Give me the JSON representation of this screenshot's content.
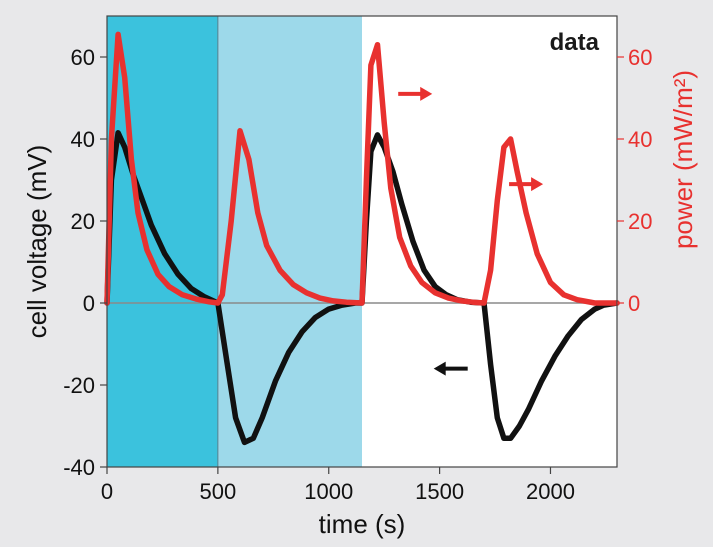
{
  "chart_data": {
    "type": "line",
    "title": "data",
    "xlabel": "time (s)",
    "ylabel_left": "cell voltage (mV)",
    "ylabel_right": "power (mW/m²)",
    "xlim": [
      0,
      2300
    ],
    "ylim_left": [
      -40,
      70
    ],
    "ylim_right": [
      0,
      70
    ],
    "xticks": [
      0,
      500,
      1000,
      1500,
      2000
    ],
    "xtick_labels": [
      "0",
      "500",
      "1000",
      "1500",
      "2000"
    ],
    "yticks_left": [
      -40,
      -20,
      0,
      20,
      40,
      60
    ],
    "ytick_labels_left": [
      "-40",
      "-20",
      "0",
      "20",
      "40",
      "60"
    ],
    "yticks_right": [
      0,
      20,
      40,
      60
    ],
    "ytick_labels_right": [
      "0",
      "20",
      "40",
      "60"
    ],
    "grid": false,
    "shaded_regions": [
      {
        "x": [
          0,
          500
        ],
        "color": "#3bc2dd"
      },
      {
        "x": [
          500,
          1150
        ],
        "color": "#9dd9ea"
      }
    ],
    "series": [
      {
        "color": "#111111",
        "axis": "left",
        "x": [
          0,
          20,
          50,
          80,
          120,
          160,
          200,
          260,
          320,
          380,
          440,
          500,
          540,
          580,
          620,
          660,
          700,
          760,
          820,
          880,
          940,
          1000,
          1060,
          1120,
          1150,
          1170,
          1190,
          1220,
          1250,
          1290,
          1330,
          1380,
          1430,
          1480,
          1530,
          1580,
          1640,
          1700,
          1730,
          1760,
          1790,
          1820,
          1860,
          1900,
          1960,
          2020,
          2080,
          2140,
          2200,
          2240,
          2300
        ],
        "y": [
          0,
          30,
          41.5,
          38,
          31,
          25,
          19,
          12,
          7,
          3.5,
          1.5,
          0,
          -14,
          -28,
          -34,
          -33,
          -28,
          -19,
          -12,
          -7,
          -3.5,
          -1.5,
          -0.5,
          0,
          0,
          20,
          37,
          41,
          38,
          32,
          24,
          15,
          8,
          4,
          2,
          0.8,
          0.2,
          0,
          -15,
          -28,
          -33,
          -33,
          -30,
          -26,
          -19,
          -13,
          -8,
          -4,
          -1.5,
          -0.5,
          0
        ]
      },
      {
        "color": "#e8312f",
        "axis": "right",
        "x": [
          0,
          20,
          50,
          80,
          110,
          140,
          180,
          230,
          280,
          340,
          400,
          460,
          500,
          520,
          560,
          600,
          640,
          680,
          720,
          780,
          840,
          900,
          960,
          1020,
          1080,
          1150,
          1170,
          1190,
          1220,
          1250,
          1280,
          1320,
          1370,
          1420,
          1480,
          1540,
          1600,
          1650,
          1700,
          1730,
          1760,
          1790,
          1820,
          1850,
          1890,
          1940,
          2000,
          2060,
          2120,
          2200,
          2300
        ],
        "y": [
          0,
          40,
          65.5,
          55,
          35,
          22,
          13,
          7,
          4,
          2,
          1,
          0.3,
          0,
          2,
          20,
          42,
          35,
          22,
          14,
          8,
          4.5,
          2.5,
          1.2,
          0.5,
          0.2,
          0,
          30,
          58,
          63,
          44,
          28,
          16,
          9,
          5,
          2.5,
          1.2,
          0.5,
          0.2,
          0,
          8,
          25,
          38,
          40,
          32,
          22,
          12,
          5,
          2,
          0.8,
          0,
          0
        ]
      }
    ],
    "annotations": [
      {
        "glyph": "arrow-right",
        "color": "#e8312f",
        "x": 1390,
        "y_right": 51
      },
      {
        "glyph": "arrow-right",
        "color": "#e8312f",
        "x": 1890,
        "y_right": 29
      },
      {
        "glyph": "arrow-left",
        "color": "#111111",
        "x": 1550,
        "y_left": -16
      }
    ]
  }
}
